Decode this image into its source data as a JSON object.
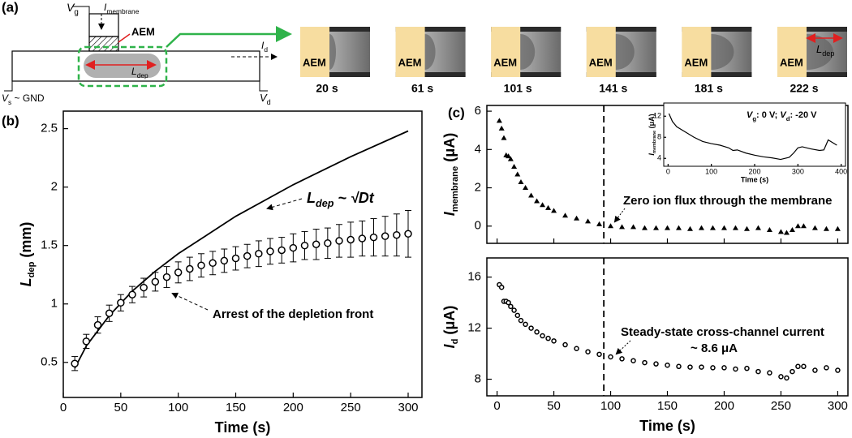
{
  "panel_a": {
    "label": "(a)",
    "schematic": {
      "gate": {
        "main": "V",
        "sub": "g"
      },
      "membrane_current": {
        "main": "I",
        "sub": "membrane"
      },
      "aem": "AEM",
      "length": {
        "main": "L",
        "sub": "dep"
      },
      "drain_current": {
        "main": "I",
        "sub": "d"
      },
      "source": {
        "main": "V",
        "sub": "s",
        "rest": " ~ GND"
      },
      "drain": {
        "main": "V",
        "sub": "d"
      }
    },
    "frames": [
      {
        "label": "AEM",
        "time": "20 s"
      },
      {
        "label": "AEM",
        "time": "61 s"
      },
      {
        "label": "AEM",
        "time": "101 s"
      },
      {
        "label": "AEM",
        "time": "141 s"
      },
      {
        "label": "AEM",
        "time": "181 s"
      },
      {
        "label": "AEM",
        "time": "222 s"
      }
    ],
    "frame_length": {
      "main": "L",
      "sub": "dep"
    }
  },
  "chart_data": [
    {
      "type": "scatter",
      "panel_label": "(b)",
      "xlabel": "Time (s)",
      "ylabel": {
        "main": "L",
        "sub": "dep",
        "rest": " (mm)"
      },
      "xlim": [
        0,
        312
      ],
      "ylim": [
        0.2,
        2.65
      ],
      "xticks": [
        0,
        50,
        100,
        150,
        200,
        250,
        300
      ],
      "yticks": [
        0.5,
        1.0,
        1.5,
        2.0,
        2.5
      ],
      "annotations": [
        {
          "main": "L",
          "sub": "dep",
          "rest": " ~ √Dt"
        },
        "Arrest of the depletion front"
      ],
      "series": [
        {
          "style": "line",
          "color": "#000000",
          "x": [
            10,
            20,
            40,
            60,
            80,
            100,
            150,
            200,
            250,
            300
          ],
          "values": [
            0.45,
            0.64,
            0.9,
            1.11,
            1.28,
            1.43,
            1.75,
            2.02,
            2.26,
            2.48
          ]
        },
        {
          "style": "circle-open",
          "color": "#000000",
          "x": [
            10,
            20,
            30,
            40,
            50,
            60,
            70,
            80,
            90,
            100,
            110,
            120,
            130,
            140,
            150,
            160,
            170,
            180,
            190,
            200,
            210,
            220,
            230,
            240,
            250,
            260,
            270,
            280,
            290,
            300
          ],
          "values": [
            0.49,
            0.68,
            0.82,
            0.92,
            1.01,
            1.08,
            1.14,
            1.19,
            1.23,
            1.27,
            1.3,
            1.33,
            1.35,
            1.37,
            1.39,
            1.41,
            1.43,
            1.45,
            1.46,
            1.48,
            1.5,
            1.51,
            1.52,
            1.54,
            1.55,
            1.56,
            1.57,
            1.58,
            1.59,
            1.6
          ],
          "errors": [
            0.06,
            0.06,
            0.07,
            0.07,
            0.07,
            0.07,
            0.08,
            0.08,
            0.09,
            0.09,
            0.1,
            0.1,
            0.1,
            0.1,
            0.1,
            0.1,
            0.11,
            0.11,
            0.11,
            0.12,
            0.12,
            0.13,
            0.13,
            0.14,
            0.15,
            0.15,
            0.16,
            0.17,
            0.18,
            0.2
          ]
        }
      ]
    },
    {
      "type": "scatter",
      "panel_label": "(c)",
      "ylabel": {
        "main": "I",
        "sub": "membrane",
        "rest": " (μA)"
      },
      "xlim": [
        -9,
        309
      ],
      "ylim": [
        -0.9,
        6.3
      ],
      "xticks": [
        0,
        50,
        100,
        150,
        200,
        250,
        300
      ],
      "show_xtick_labels": false,
      "yticks": [
        0,
        2,
        4,
        6
      ],
      "vline": 94,
      "annotations": [
        "Zero ion flux through the membrane"
      ],
      "series": [
        {
          "style": "triangle",
          "color": "#000000",
          "x": [
            2,
            4,
            6,
            8,
            10,
            12,
            15,
            18,
            21,
            25,
            30,
            35,
            40,
            45,
            50,
            60,
            70,
            80,
            90,
            100,
            110,
            120,
            130,
            140,
            150,
            160,
            170,
            180,
            190,
            200,
            210,
            220,
            230,
            240,
            250,
            255,
            260,
            265,
            270,
            280,
            290,
            300
          ],
          "values": [
            5.5,
            5.1,
            4.6,
            3.7,
            3.65,
            3.5,
            3.1,
            2.7,
            2.3,
            2.0,
            1.6,
            1.3,
            1.1,
            0.95,
            0.8,
            0.55,
            0.4,
            0.25,
            0.1,
            0.0,
            -0.05,
            -0.05,
            -0.1,
            -0.1,
            -0.1,
            -0.1,
            -0.15,
            -0.1,
            -0.1,
            -0.1,
            -0.1,
            -0.15,
            -0.1,
            -0.2,
            -0.3,
            -0.35,
            -0.2,
            0.0,
            0.0,
            -0.1,
            -0.15,
            -0.15
          ]
        }
      ]
    },
    {
      "type": "scatter",
      "xlabel": "Time (s)",
      "ylabel": {
        "main": "I",
        "sub": "d",
        "rest": " (μA)"
      },
      "xlim": [
        -9,
        309
      ],
      "ylim": [
        6.7,
        17.5
      ],
      "xticks": [
        0,
        50,
        100,
        150,
        200,
        250,
        300
      ],
      "yticks": [
        8,
        12,
        16
      ],
      "vline": 94,
      "annotations": [
        "Steady-state cross-channel current",
        "~ 8.6 μA"
      ],
      "series": [
        {
          "style": "circle-open",
          "color": "#000000",
          "x": [
            2,
            4,
            6,
            8,
            10,
            12,
            15,
            18,
            21,
            25,
            30,
            35,
            40,
            45,
            50,
            60,
            70,
            80,
            90,
            100,
            110,
            120,
            130,
            140,
            150,
            160,
            170,
            180,
            190,
            200,
            210,
            220,
            230,
            240,
            250,
            255,
            260,
            265,
            270,
            280,
            290,
            300
          ],
          "values": [
            15.4,
            15.2,
            14.1,
            14.1,
            14.0,
            13.7,
            13.4,
            13.0,
            12.6,
            12.3,
            12.0,
            11.7,
            11.4,
            11.2,
            11.0,
            10.7,
            10.4,
            10.15,
            9.95,
            9.75,
            9.6,
            9.45,
            9.3,
            9.2,
            9.1,
            9.0,
            8.95,
            8.95,
            8.9,
            8.9,
            8.8,
            8.85,
            8.6,
            8.5,
            8.2,
            8.1,
            8.6,
            9.0,
            9.0,
            8.7,
            8.9,
            8.7
          ]
        }
      ]
    },
    {
      "type": "line",
      "xlabel": "Time (s)",
      "ylabel": {
        "main": "I",
        "sub": "membrane",
        "rest": " (μA)"
      },
      "xlim": [
        -10,
        410
      ],
      "ylim": [
        2.5,
        14.5
      ],
      "xticks": [
        0,
        100,
        200,
        300,
        400
      ],
      "yticks": [
        4,
        8,
        12
      ],
      "annotations": [
        [
          {
            "main": "V",
            "sub": "g",
            "rest": ": 0 V; "
          },
          {
            "main": "V",
            "sub": "d",
            "rest": ": -20 V"
          }
        ]
      ],
      "series": [
        {
          "style": "line",
          "color": "#000000",
          "x": [
            2,
            10,
            20,
            40,
            60,
            80,
            100,
            120,
            140,
            150,
            160,
            180,
            200,
            220,
            240,
            260,
            280,
            290,
            300,
            310,
            330,
            350,
            360,
            370,
            380,
            390
          ],
          "values": [
            12.5,
            11,
            10,
            9,
            8,
            7.2,
            6.8,
            6.5,
            6,
            5.5,
            5.6,
            5.0,
            4.6,
            4.3,
            4.1,
            3.8,
            4.2,
            5.0,
            6.0,
            6.2,
            5.8,
            5.5,
            5.6,
            7.5,
            7,
            6.5
          ]
        }
      ]
    }
  ]
}
